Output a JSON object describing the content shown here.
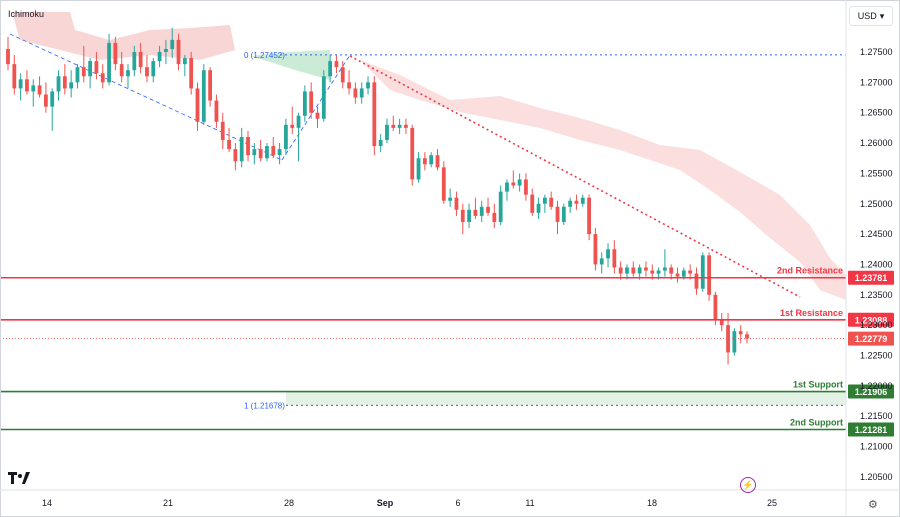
{
  "header": {
    "indicator": "Ichimoku",
    "currency": "USD"
  },
  "icons": {
    "tv_logo": "tradingview-logo-icon",
    "bolt": "lightning-icon",
    "settings": "gear-icon",
    "caret": "chevron-down-icon"
  },
  "colors": {
    "bull": "#26a69a",
    "bear": "#ef5350",
    "resistance": "#f23645",
    "support": "#2e7d32",
    "cloud": "#f7c5c5",
    "fib": "#2962ff"
  },
  "chart_data": {
    "type": "candlestick",
    "yticks": [
      "1.27500",
      "1.27000",
      "1.26500",
      "1.26000",
      "1.25500",
      "1.25000",
      "1.24500",
      "1.24000",
      "1.23500",
      "1.23000",
      "1.22500",
      "1.22000",
      "1.21500",
      "1.21000",
      "1.20500"
    ],
    "xticks": [
      "14",
      "21",
      "28",
      "Sep",
      "6",
      "11",
      "18",
      "25"
    ],
    "price_labels": [
      {
        "name": "2nd Resistance",
        "value": "1.23781"
      },
      {
        "name": "1st Resistance",
        "value": "1.23088"
      },
      {
        "name": "current",
        "value": "1.22779"
      },
      {
        "name": "1st Support",
        "value": "1.21906"
      },
      {
        "name": "2nd Support",
        "value": "1.21281"
      }
    ],
    "fib_labels": [
      "0 (1.27452)",
      "1 (1.21678)"
    ],
    "candles": [
      {
        "o": 1.2755,
        "h": 1.2775,
        "l": 1.272,
        "c": 1.273
      },
      {
        "o": 1.273,
        "h": 1.2745,
        "l": 1.268,
        "c": 1.269
      },
      {
        "o": 1.269,
        "h": 1.2715,
        "l": 1.267,
        "c": 1.2705
      },
      {
        "o": 1.2705,
        "h": 1.272,
        "l": 1.268,
        "c": 1.2685
      },
      {
        "o": 1.2685,
        "h": 1.2705,
        "l": 1.266,
        "c": 1.2695
      },
      {
        "o": 1.2695,
        "h": 1.271,
        "l": 1.2675,
        "c": 1.268
      },
      {
        "o": 1.268,
        "h": 1.27,
        "l": 1.265,
        "c": 1.266
      },
      {
        "o": 1.266,
        "h": 1.269,
        "l": 1.262,
        "c": 1.2685
      },
      {
        "o": 1.2685,
        "h": 1.272,
        "l": 1.267,
        "c": 1.271
      },
      {
        "o": 1.271,
        "h": 1.273,
        "l": 1.268,
        "c": 1.269
      },
      {
        "o": 1.269,
        "h": 1.272,
        "l": 1.2675,
        "c": 1.27
      },
      {
        "o": 1.27,
        "h": 1.273,
        "l": 1.269,
        "c": 1.2725
      },
      {
        "o": 1.2725,
        "h": 1.276,
        "l": 1.27,
        "c": 1.271
      },
      {
        "o": 1.271,
        "h": 1.274,
        "l": 1.269,
        "c": 1.2735
      },
      {
        "o": 1.2735,
        "h": 1.275,
        "l": 1.2705,
        "c": 1.2715
      },
      {
        "o": 1.2715,
        "h": 1.273,
        "l": 1.269,
        "c": 1.27
      },
      {
        "o": 1.27,
        "h": 1.278,
        "l": 1.2695,
        "c": 1.2765
      },
      {
        "o": 1.2765,
        "h": 1.2775,
        "l": 1.272,
        "c": 1.273
      },
      {
        "o": 1.273,
        "h": 1.275,
        "l": 1.27,
        "c": 1.271
      },
      {
        "o": 1.271,
        "h": 1.273,
        "l": 1.269,
        "c": 1.272
      },
      {
        "o": 1.272,
        "h": 1.276,
        "l": 1.271,
        "c": 1.275
      },
      {
        "o": 1.275,
        "h": 1.2765,
        "l": 1.2715,
        "c": 1.2725
      },
      {
        "o": 1.2725,
        "h": 1.2745,
        "l": 1.27,
        "c": 1.271
      },
      {
        "o": 1.271,
        "h": 1.274,
        "l": 1.27,
        "c": 1.2735
      },
      {
        "o": 1.2735,
        "h": 1.276,
        "l": 1.2725,
        "c": 1.275
      },
      {
        "o": 1.275,
        "h": 1.277,
        "l": 1.273,
        "c": 1.2755
      },
      {
        "o": 1.2755,
        "h": 1.279,
        "l": 1.274,
        "c": 1.277
      },
      {
        "o": 1.277,
        "h": 1.278,
        "l": 1.272,
        "c": 1.273
      },
      {
        "o": 1.273,
        "h": 1.2745,
        "l": 1.271,
        "c": 1.274
      },
      {
        "o": 1.274,
        "h": 1.275,
        "l": 1.268,
        "c": 1.269
      },
      {
        "o": 1.269,
        "h": 1.27,
        "l": 1.262,
        "c": 1.2635
      },
      {
        "o": 1.2635,
        "h": 1.273,
        "l": 1.263,
        "c": 1.272
      },
      {
        "o": 1.272,
        "h": 1.2725,
        "l": 1.266,
        "c": 1.267
      },
      {
        "o": 1.267,
        "h": 1.268,
        "l": 1.2625,
        "c": 1.2635
      },
      {
        "o": 1.2635,
        "h": 1.265,
        "l": 1.259,
        "c": 1.2605
      },
      {
        "o": 1.2605,
        "h": 1.2625,
        "l": 1.2585,
        "c": 1.259
      },
      {
        "o": 1.259,
        "h": 1.26,
        "l": 1.2555,
        "c": 1.257
      },
      {
        "o": 1.257,
        "h": 1.2625,
        "l": 1.256,
        "c": 1.261
      },
      {
        "o": 1.261,
        "h": 1.262,
        "l": 1.257,
        "c": 1.258
      },
      {
        "o": 1.258,
        "h": 1.26,
        "l": 1.2565,
        "c": 1.259
      },
      {
        "o": 1.259,
        "h": 1.2605,
        "l": 1.257,
        "c": 1.2575
      },
      {
        "o": 1.2575,
        "h": 1.26,
        "l": 1.257,
        "c": 1.2595
      },
      {
        "o": 1.2595,
        "h": 1.261,
        "l": 1.2575,
        "c": 1.258
      },
      {
        "o": 1.258,
        "h": 1.26,
        "l": 1.2565,
        "c": 1.259
      },
      {
        "o": 1.259,
        "h": 1.264,
        "l": 1.258,
        "c": 1.263
      },
      {
        "o": 1.263,
        "h": 1.266,
        "l": 1.2615,
        "c": 1.2625
      },
      {
        "o": 1.2625,
        "h": 1.265,
        "l": 1.257,
        "c": 1.2645
      },
      {
        "o": 1.2645,
        "h": 1.2695,
        "l": 1.2635,
        "c": 1.2685
      },
      {
        "o": 1.2685,
        "h": 1.27,
        "l": 1.264,
        "c": 1.265
      },
      {
        "o": 1.265,
        "h": 1.266,
        "l": 1.2625,
        "c": 1.264
      },
      {
        "o": 1.264,
        "h": 1.272,
        "l": 1.2635,
        "c": 1.271
      },
      {
        "o": 1.271,
        "h": 1.2745,
        "l": 1.27,
        "c": 1.2735
      },
      {
        "o": 1.2735,
        "h": 1.2745,
        "l": 1.2715,
        "c": 1.2725
      },
      {
        "o": 1.2725,
        "h": 1.2735,
        "l": 1.269,
        "c": 1.27
      },
      {
        "o": 1.27,
        "h": 1.272,
        "l": 1.268,
        "c": 1.269
      },
      {
        "o": 1.269,
        "h": 1.27,
        "l": 1.2665,
        "c": 1.2675
      },
      {
        "o": 1.2675,
        "h": 1.27,
        "l": 1.2665,
        "c": 1.269
      },
      {
        "o": 1.269,
        "h": 1.271,
        "l": 1.268,
        "c": 1.27
      },
      {
        "o": 1.27,
        "h": 1.271,
        "l": 1.258,
        "c": 1.2595
      },
      {
        "o": 1.2595,
        "h": 1.2615,
        "l": 1.2585,
        "c": 1.2605
      },
      {
        "o": 1.2605,
        "h": 1.264,
        "l": 1.26,
        "c": 1.263
      },
      {
        "o": 1.263,
        "h": 1.2645,
        "l": 1.262,
        "c": 1.2625
      },
      {
        "o": 1.2625,
        "h": 1.264,
        "l": 1.2615,
        "c": 1.263
      },
      {
        "o": 1.263,
        "h": 1.264,
        "l": 1.2615,
        "c": 1.2625
      },
      {
        "o": 1.2625,
        "h": 1.263,
        "l": 1.253,
        "c": 1.254
      },
      {
        "o": 1.254,
        "h": 1.2585,
        "l": 1.2535,
        "c": 1.2575
      },
      {
        "o": 1.2575,
        "h": 1.2585,
        "l": 1.2555,
        "c": 1.2565
      },
      {
        "o": 1.2565,
        "h": 1.2585,
        "l": 1.256,
        "c": 1.258
      },
      {
        "o": 1.258,
        "h": 1.259,
        "l": 1.2555,
        "c": 1.256
      },
      {
        "o": 1.256,
        "h": 1.257,
        "l": 1.25,
        "c": 1.2505
      },
      {
        "o": 1.2505,
        "h": 1.2525,
        "l": 1.2495,
        "c": 1.251
      },
      {
        "o": 1.251,
        "h": 1.252,
        "l": 1.248,
        "c": 1.249
      },
      {
        "o": 1.249,
        "h": 1.25,
        "l": 1.245,
        "c": 1.247
      },
      {
        "o": 1.247,
        "h": 1.25,
        "l": 1.246,
        "c": 1.249
      },
      {
        "o": 1.249,
        "h": 1.251,
        "l": 1.2475,
        "c": 1.248
      },
      {
        "o": 1.248,
        "h": 1.2505,
        "l": 1.247,
        "c": 1.2495
      },
      {
        "o": 1.2495,
        "h": 1.251,
        "l": 1.248,
        "c": 1.2485
      },
      {
        "o": 1.2485,
        "h": 1.25,
        "l": 1.246,
        "c": 1.247
      },
      {
        "o": 1.247,
        "h": 1.253,
        "l": 1.2465,
        "c": 1.252
      },
      {
        "o": 1.252,
        "h": 1.254,
        "l": 1.2505,
        "c": 1.2535
      },
      {
        "o": 1.2535,
        "h": 1.2555,
        "l": 1.2525,
        "c": 1.253
      },
      {
        "o": 1.253,
        "h": 1.255,
        "l": 1.252,
        "c": 1.254
      },
      {
        "o": 1.254,
        "h": 1.255,
        "l": 1.2505,
        "c": 1.2515
      },
      {
        "o": 1.2515,
        "h": 1.2525,
        "l": 1.248,
        "c": 1.2485
      },
      {
        "o": 1.2485,
        "h": 1.251,
        "l": 1.2475,
        "c": 1.25
      },
      {
        "o": 1.25,
        "h": 1.2515,
        "l": 1.2485,
        "c": 1.251
      },
      {
        "o": 1.251,
        "h": 1.252,
        "l": 1.249,
        "c": 1.2495
      },
      {
        "o": 1.2495,
        "h": 1.2505,
        "l": 1.245,
        "c": 1.247
      },
      {
        "o": 1.247,
        "h": 1.25,
        "l": 1.2465,
        "c": 1.2495
      },
      {
        "o": 1.2495,
        "h": 1.251,
        "l": 1.2485,
        "c": 1.2505
      },
      {
        "o": 1.2505,
        "h": 1.2515,
        "l": 1.249,
        "c": 1.25
      },
      {
        "o": 1.25,
        "h": 1.2515,
        "l": 1.2495,
        "c": 1.251
      },
      {
        "o": 1.251,
        "h": 1.2515,
        "l": 1.244,
        "c": 1.245
      },
      {
        "o": 1.245,
        "h": 1.246,
        "l": 1.239,
        "c": 1.24
      },
      {
        "o": 1.24,
        "h": 1.242,
        "l": 1.2385,
        "c": 1.241
      },
      {
        "o": 1.241,
        "h": 1.2435,
        "l": 1.2395,
        "c": 1.2425
      },
      {
        "o": 1.2425,
        "h": 1.244,
        "l": 1.2385,
        "c": 1.2395
      },
      {
        "o": 1.2395,
        "h": 1.2405,
        "l": 1.2375,
        "c": 1.2385
      },
      {
        "o": 1.2385,
        "h": 1.24,
        "l": 1.2375,
        "c": 1.2395
      },
      {
        "o": 1.2395,
        "h": 1.2405,
        "l": 1.238,
        "c": 1.2385
      },
      {
        "o": 1.2385,
        "h": 1.24,
        "l": 1.2375,
        "c": 1.2395
      },
      {
        "o": 1.2395,
        "h": 1.2405,
        "l": 1.238,
        "c": 1.239
      },
      {
        "o": 1.239,
        "h": 1.24,
        "l": 1.2375,
        "c": 1.2385
      },
      {
        "o": 1.2385,
        "h": 1.2395,
        "l": 1.2375,
        "c": 1.239
      },
      {
        "o": 1.239,
        "h": 1.2425,
        "l": 1.238,
        "c": 1.2395
      },
      {
        "o": 1.2395,
        "h": 1.24,
        "l": 1.2375,
        "c": 1.2385
      },
      {
        "o": 1.2385,
        "h": 1.2395,
        "l": 1.237,
        "c": 1.238
      },
      {
        "o": 1.238,
        "h": 1.2395,
        "l": 1.2375,
        "c": 1.239
      },
      {
        "o": 1.239,
        "h": 1.24,
        "l": 1.2375,
        "c": 1.2385
      },
      {
        "o": 1.2385,
        "h": 1.2395,
        "l": 1.235,
        "c": 1.236
      },
      {
        "o": 1.236,
        "h": 1.242,
        "l": 1.2355,
        "c": 1.2415
      },
      {
        "o": 1.2415,
        "h": 1.242,
        "l": 1.234,
        "c": 1.235
      },
      {
        "o": 1.235,
        "h": 1.2355,
        "l": 1.23,
        "c": 1.231
      },
      {
        "o": 1.231,
        "h": 1.232,
        "l": 1.229,
        "c": 1.23
      },
      {
        "o": 1.23,
        "h": 1.232,
        "l": 1.2235,
        "c": 1.2255
      },
      {
        "o": 1.2255,
        "h": 1.2295,
        "l": 1.225,
        "c": 1.229
      },
      {
        "o": 1.229,
        "h": 1.23,
        "l": 1.227,
        "c": 1.2285
      },
      {
        "o": 1.2285,
        "h": 1.229,
        "l": 1.227,
        "c": 1.2278
      }
    ]
  }
}
